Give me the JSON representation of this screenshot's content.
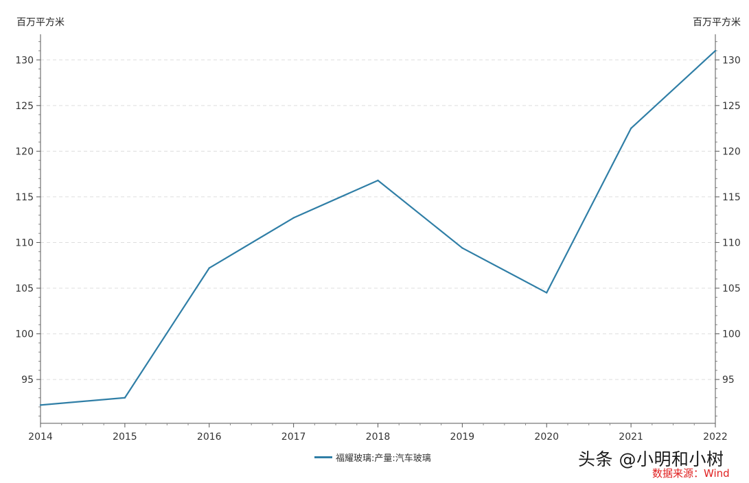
{
  "chart_data": {
    "type": "line",
    "x": [
      "2014",
      "2015",
      "2016",
      "2017",
      "2018",
      "2019",
      "2020",
      "2021",
      "2022"
    ],
    "series": [
      {
        "name": "福耀玻璃:产量:汽车玻璃",
        "values": [
          92.2,
          93.0,
          107.2,
          112.7,
          116.8,
          109.4,
          104.5,
          122.5,
          131.0
        ],
        "color": "#2f7ea6"
      }
    ],
    "y_left_label": "百万平方米",
    "y_right_label": "百万平方米",
    "yticks": [
      95,
      100,
      105,
      110,
      115,
      120,
      125,
      130
    ],
    "ylim": [
      90.2,
      132.8
    ],
    "grid": true
  },
  "watermark": "头条 @小明和小树",
  "source": "数据来源：Wind"
}
